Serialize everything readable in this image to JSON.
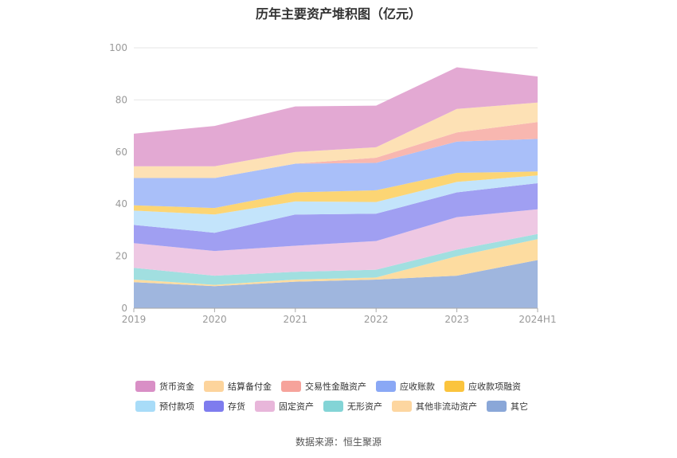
{
  "page": {
    "title": "历年主要资产堆积图（亿元）",
    "source": "数据来源：恒生聚源"
  },
  "chart_data": {
    "type": "area",
    "stacked": true,
    "title": "历年主要资产堆积图（亿元）",
    "xlabel": "",
    "ylabel": "",
    "categories": [
      "2019",
      "2020",
      "2021",
      "2022",
      "2023",
      "2024H1"
    ],
    "ylim": [
      0,
      100
    ],
    "yticks": [
      0,
      20,
      40,
      60,
      80,
      100
    ],
    "grid": true,
    "legend_position": "bottom",
    "series": [
      {
        "name": "其它",
        "color": "#9fb6de",
        "values": [
          10.0,
          8.5,
          10.2,
          11.0,
          12.5,
          18.5
        ]
      },
      {
        "name": "其他非流动资产",
        "color": "#fddca0",
        "values": [
          1.0,
          0.5,
          0.8,
          0.8,
          7.5,
          8.0
        ]
      },
      {
        "name": "无形资产",
        "color": "#a1dfe0",
        "values": [
          4.5,
          3.5,
          3.0,
          3.0,
          2.5,
          2.0
        ]
      },
      {
        "name": "固定资产",
        "color": "#eec8e3",
        "values": [
          9.5,
          9.5,
          10.0,
          11.0,
          12.5,
          9.5
        ]
      },
      {
        "name": "存货",
        "color": "#a09ff2",
        "values": [
          7.0,
          7.0,
          12.0,
          10.5,
          9.5,
          10.0
        ]
      },
      {
        "name": "预付款项",
        "color": "#c3e4fb",
        "values": [
          5.5,
          7.0,
          5.0,
          4.5,
          4.0,
          3.0
        ]
      },
      {
        "name": "应收款项融资",
        "color": "#fcd574",
        "values": [
          2.0,
          2.5,
          3.5,
          4.5,
          3.5,
          1.5
        ]
      },
      {
        "name": "应收账款",
        "color": "#a9bff9",
        "values": [
          10.5,
          11.5,
          11.0,
          10.5,
          12.0,
          12.5
        ]
      },
      {
        "name": "交易性金融资产",
        "color": "#f8b7b0",
        "values": [
          0.0,
          0.0,
          0.0,
          2.0,
          3.5,
          6.5
        ]
      },
      {
        "name": "结算备付金",
        "color": "#fde1b5",
        "values": [
          4.5,
          4.5,
          4.5,
          4.0,
          9.0,
          7.5
        ]
      },
      {
        "name": "货币资金",
        "color": "#e3a9d3",
        "values": [
          12.5,
          15.5,
          17.5,
          16.0,
          16.0,
          10.0
        ]
      }
    ]
  },
  "legend": {
    "rows": [
      [
        {
          "label": "货币资金",
          "color": "#d98fc6"
        },
        {
          "label": "结算备付金",
          "color": "#fdd49c"
        },
        {
          "label": "交易性金融资产",
          "color": "#f6a39b"
        },
        {
          "label": "应收账款",
          "color": "#8aa8f5"
        },
        {
          "label": "应收款项融资",
          "color": "#fbc43d"
        }
      ],
      [
        {
          "label": "预付款项",
          "color": "#a8dcf8"
        },
        {
          "label": "存货",
          "color": "#7e7cee"
        },
        {
          "label": "固定资产",
          "color": "#e8b6da"
        },
        {
          "label": "无形资产",
          "color": "#83d4d6"
        },
        {
          "label": "其他非流动资产",
          "color": "#fdd6a0"
        },
        {
          "label": "其它",
          "color": "#8aa7d8"
        }
      ]
    ]
  }
}
